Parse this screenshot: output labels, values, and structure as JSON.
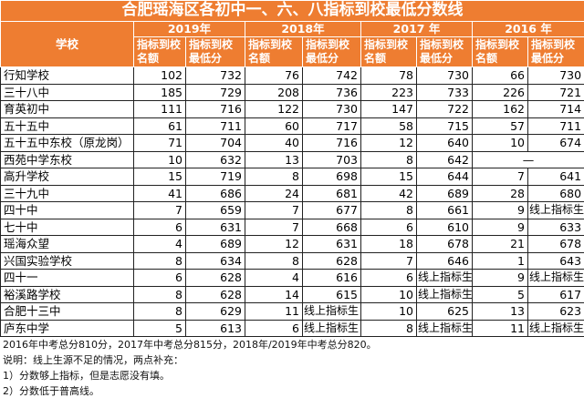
{
  "title": "合肥瑶海区各初中一、六、八指标到校最低分数线",
  "header": {
    "school": "学校",
    "years": [
      "2019年",
      "2018年",
      "2017 年",
      "2016 年"
    ],
    "quota": "指标到校名额",
    "min_score": "指标到校最低分"
  },
  "rows": [
    {
      "school": "行知学校",
      "v": [
        "102",
        "732",
        "76",
        "742",
        "78",
        "730",
        "66",
        "730"
      ]
    },
    {
      "school": "三十八中",
      "v": [
        "185",
        "729",
        "208",
        "736",
        "223",
        "733",
        "226",
        "721"
      ]
    },
    {
      "school": "育英初中",
      "v": [
        "111",
        "716",
        "122",
        "730",
        "147",
        "722",
        "162",
        "714"
      ]
    },
    {
      "school": "五十五中",
      "v": [
        "61",
        "711",
        "60",
        "717",
        "58",
        "715",
        "57",
        "711"
      ]
    },
    {
      "school": "五十五中东校（原龙岗）",
      "v": [
        "71",
        "704",
        "40",
        "716",
        "12",
        "640",
        "10",
        "674"
      ]
    },
    {
      "school": "西苑中学东校",
      "v": [
        "10",
        "632",
        "13",
        "703",
        "8",
        "642",
        "—",
        ""
      ]
    },
    {
      "school": "高升学校",
      "v": [
        "15",
        "719",
        "8",
        "698",
        "15",
        "644",
        "7",
        "641"
      ]
    },
    {
      "school": "三十九中",
      "v": [
        "41",
        "686",
        "24",
        "681",
        "42",
        "689",
        "28",
        "680"
      ]
    },
    {
      "school": "四十中",
      "v": [
        "7",
        "659",
        "7",
        "677",
        "8",
        "661",
        "9",
        "线上指标生"
      ]
    },
    {
      "school": "七十中",
      "v": [
        "6",
        "631",
        "7",
        "668",
        "6",
        "610",
        "9",
        "633"
      ]
    },
    {
      "school": "瑶海众望",
      "v": [
        "4",
        "689",
        "12",
        "631",
        "18",
        "678",
        "21",
        "678"
      ]
    },
    {
      "school": "兴国实验学校",
      "v": [
        "8",
        "634",
        "8",
        "628",
        "7",
        "646",
        "1",
        "643"
      ]
    },
    {
      "school": "四十一",
      "v": [
        "6",
        "628",
        "4",
        "616",
        "6",
        "线上指标生",
        "9",
        "线上指标生"
      ]
    },
    {
      "school": "裕溪路学校",
      "v": [
        "8",
        "628",
        "14",
        "615",
        "10",
        "线上指标生",
        "5",
        "617"
      ]
    },
    {
      "school": "合肥十三中",
      "v": [
        "8",
        "629",
        "11",
        "线上指标生",
        "10",
        "625",
        "13",
        "623"
      ]
    },
    {
      "school": "庐东中学",
      "v": [
        "5",
        "613",
        "6",
        "线上指标生",
        "8",
        "线上指标生",
        "11",
        "线上指标生"
      ]
    }
  ],
  "notes": [
    "2016年中考总分810分，2017年中考总分815分，2018年/2019年中考总分820。",
    "说明：线上生源不足的情况，两点补充：",
    "1）分数够上指标，但是志愿没有填。",
    "2）分数低于普高线。"
  ],
  "colors": {
    "header_bg": "#ee7d31",
    "header_text": "#ffffff"
  }
}
